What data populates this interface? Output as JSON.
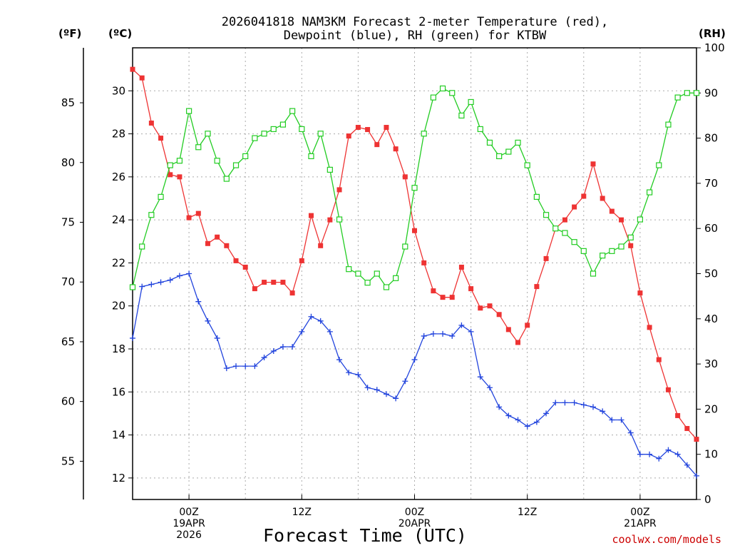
{
  "chart_data": {
    "type": "line",
    "title_line1": "2026041818 NAM3KM Forecast 2-meter Temperature (red),",
    "title_line2": "Dewpoint (blue), RH (green) for KTBW",
    "units": {
      "fahrenheit": "(ºF)",
      "celsius": "(ºC)",
      "rh": "(RH)"
    },
    "xlabel": "Forecast Time (UTC)",
    "credit": "coolwx.com/models",
    "x_range_hours": [
      0,
      60
    ],
    "y_celsius_range": [
      11.0,
      32.0
    ],
    "y_rh_range": [
      0,
      100
    ],
    "celsius_ticks": [
      "12",
      "14",
      "16",
      "18",
      "20",
      "22",
      "24",
      "26",
      "28",
      "30"
    ],
    "fahrenheit_ticks": [
      "55",
      "60",
      "65",
      "70",
      "75",
      "80",
      "85"
    ],
    "rh_ticks": [
      "0",
      "10",
      "20",
      "30",
      "40",
      "50",
      "60",
      "70",
      "80",
      "90",
      "100"
    ],
    "x_ticks": [
      {
        "hour": 6,
        "lines": [
          "00Z",
          "19APR",
          "2026"
        ]
      },
      {
        "hour": 18,
        "lines": [
          "12Z"
        ]
      },
      {
        "hour": 30,
        "lines": [
          "00Z",
          "20APR"
        ]
      },
      {
        "hour": 42,
        "lines": [
          "12Z"
        ]
      },
      {
        "hour": 54,
        "lines": [
          "00Z",
          "21APR"
        ]
      }
    ],
    "colors": {
      "temperature": "#ee3333",
      "dewpoint": "#2244dd",
      "rh": "#22cc22",
      "grid": "#aaaaaa"
    },
    "series": [
      {
        "name": "Temperature",
        "axis": "celsius",
        "marker": "filled-square",
        "x": [
          0,
          1,
          2,
          3,
          4,
          5,
          6,
          7,
          8,
          9,
          10,
          11,
          12,
          13,
          14,
          15,
          16,
          17,
          18,
          19,
          20,
          21,
          22,
          23,
          24,
          25,
          26,
          27,
          28,
          29,
          30,
          31,
          32,
          33,
          34,
          35,
          36,
          37,
          38,
          39,
          40,
          41,
          42,
          43,
          44,
          45,
          46,
          47,
          48,
          49,
          50,
          51,
          52,
          53,
          54,
          55,
          56,
          57,
          58,
          59,
          60
        ],
        "values": [
          31.0,
          30.6,
          28.5,
          27.8,
          26.1,
          26.0,
          24.1,
          24.3,
          22.9,
          23.2,
          22.8,
          22.1,
          21.8,
          20.8,
          21.1,
          21.1,
          21.1,
          20.6,
          22.1,
          24.2,
          22.8,
          24.0,
          25.4,
          27.9,
          28.3,
          28.2,
          27.5,
          28.3,
          27.3,
          26.0,
          23.5,
          22.0,
          20.7,
          20.4,
          20.4,
          21.8,
          20.8,
          19.9,
          20.0,
          19.6,
          18.9,
          18.3,
          19.1,
          20.9,
          22.2,
          23.6,
          24.0,
          24.6,
          25.1,
          26.6,
          25.0,
          24.4,
          24.0,
          22.8,
          20.6,
          19.0,
          17.5,
          16.1,
          14.9,
          14.3,
          13.8
        ]
      },
      {
        "name": "Dewpoint",
        "axis": "celsius",
        "marker": "plus",
        "x": [
          0,
          1,
          2,
          3,
          4,
          5,
          6,
          7,
          8,
          9,
          10,
          11,
          12,
          13,
          14,
          15,
          16,
          17,
          18,
          19,
          20,
          21,
          22,
          23,
          24,
          25,
          26,
          27,
          28,
          29,
          30,
          31,
          32,
          33,
          34,
          35,
          36,
          37,
          38,
          39,
          40,
          41,
          42,
          43,
          44,
          45,
          46,
          47,
          48,
          49,
          50,
          51,
          52,
          53,
          54,
          55,
          56,
          57,
          58,
          59,
          60
        ],
        "values": [
          18.5,
          20.9,
          21.0,
          21.1,
          21.2,
          21.4,
          21.5,
          20.2,
          19.3,
          18.5,
          17.1,
          17.2,
          17.2,
          17.2,
          17.6,
          17.9,
          18.1,
          18.1,
          18.8,
          19.5,
          19.3,
          18.8,
          17.5,
          16.9,
          16.8,
          16.2,
          16.1,
          15.9,
          15.7,
          16.5,
          17.5,
          18.6,
          18.7,
          18.7,
          18.6,
          19.1,
          18.8,
          16.7,
          16.2,
          15.3,
          14.9,
          14.7,
          14.4,
          14.6,
          15.0,
          15.5,
          15.5,
          15.5,
          15.4,
          15.3,
          15.1,
          14.7,
          14.7,
          14.1,
          13.1,
          13.1,
          12.9,
          13.3,
          13.1,
          12.6,
          12.1
        ]
      },
      {
        "name": "RH",
        "axis": "rh",
        "marker": "open-square",
        "x": [
          0,
          1,
          2,
          3,
          4,
          5,
          6,
          7,
          8,
          9,
          10,
          11,
          12,
          13,
          14,
          15,
          16,
          17,
          18,
          19,
          20,
          21,
          22,
          23,
          24,
          25,
          26,
          27,
          28,
          29,
          30,
          31,
          32,
          33,
          34,
          35,
          36,
          37,
          38,
          39,
          40,
          41,
          42,
          43,
          44,
          45,
          46,
          47,
          48,
          49,
          50,
          51,
          52,
          53,
          54,
          55,
          56,
          57,
          58,
          59,
          60
        ],
        "values": [
          47,
          56,
          63,
          67,
          74,
          75,
          86,
          78,
          81,
          75,
          71,
          74,
          76,
          80,
          81,
          82,
          83,
          86,
          82,
          76,
          81,
          73,
          62,
          51,
          50,
          48,
          50,
          47,
          49,
          56,
          69,
          81,
          89,
          91,
          90,
          85,
          88,
          82,
          79,
          76,
          77,
          79,
          74,
          67,
          63,
          60,
          59,
          57,
          55,
          50,
          54,
          55,
          56,
          58,
          62,
          68,
          74,
          83,
          89,
          90,
          90
        ]
      }
    ]
  }
}
